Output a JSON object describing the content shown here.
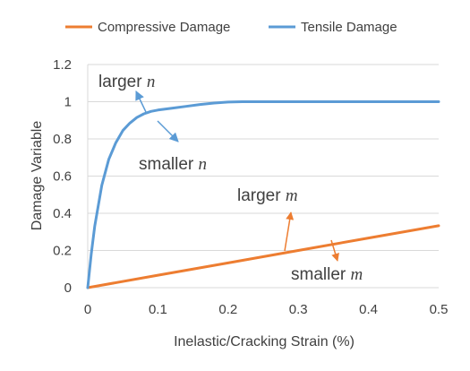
{
  "chart_data": {
    "type": "line",
    "xlabel": "Inelastic/Cracking Strain (%)",
    "ylabel": "Damage Variable",
    "xlim": [
      0,
      0.5
    ],
    "ylim": [
      0,
      1.2
    ],
    "x_ticks": [
      "0",
      "0.1",
      "0.2",
      "0.3",
      "0.4",
      "0.5"
    ],
    "y_ticks": [
      "0",
      "0.2",
      "0.4",
      "0.6",
      "0.8",
      "1",
      "1.2"
    ],
    "grid": "horizontal",
    "legend_position": "top",
    "series": [
      {
        "name": "Compressive Damage",
        "color": "#ED7D31",
        "x": [
          0,
          0.1,
          0.2,
          0.3,
          0.4,
          0.5
        ],
        "y": [
          0,
          0.067,
          0.133,
          0.2,
          0.267,
          0.333
        ]
      },
      {
        "name": "Tensile Damage",
        "color": "#5B9BD5",
        "x": [
          0,
          0.005,
          0.01,
          0.02,
          0.03,
          0.04,
          0.05,
          0.06,
          0.07,
          0.08,
          0.09,
          0.1,
          0.12,
          0.14,
          0.16,
          0.18,
          0.2,
          0.22,
          0.25,
          0.3,
          0.4,
          0.5
        ],
        "y": [
          0,
          0.18,
          0.33,
          0.55,
          0.69,
          0.78,
          0.845,
          0.885,
          0.915,
          0.935,
          0.948,
          0.955,
          0.965,
          0.975,
          0.985,
          0.993,
          0.998,
          1.0,
          1.0,
          1.0,
          1.0,
          1.0
        ]
      }
    ],
    "annotations": [
      {
        "prefix": "larger ",
        "var": "n",
        "series": "Tensile Damage"
      },
      {
        "prefix": "smaller ",
        "var": "n",
        "series": "Tensile Damage"
      },
      {
        "prefix": "larger ",
        "var": "m",
        "series": "Compressive Damage"
      },
      {
        "prefix": "smaller ",
        "var": "m",
        "series": "Compressive Damage"
      }
    ]
  }
}
